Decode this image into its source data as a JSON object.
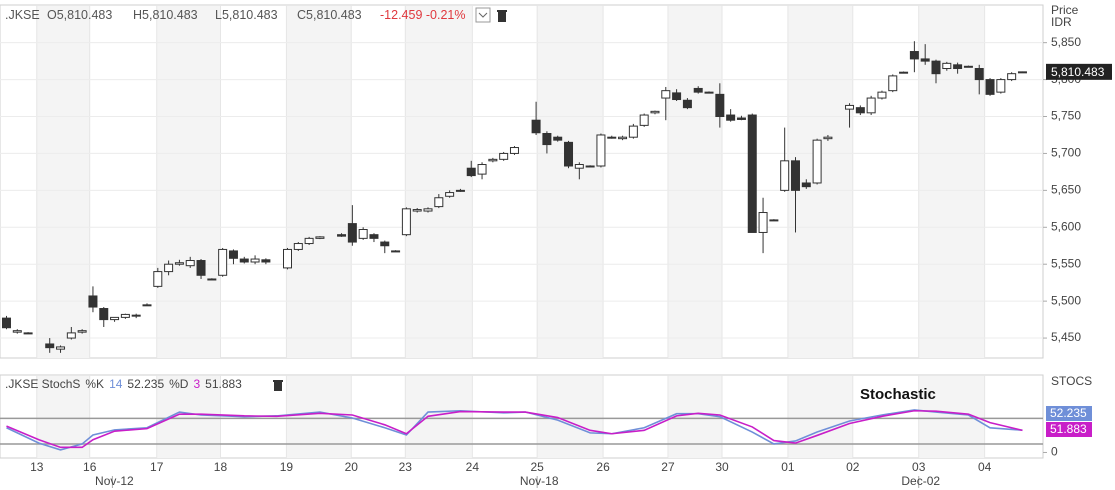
{
  "header": {
    "symbol": ".JKSE",
    "ohlc": [
      "O5,810.483",
      "H5,810.483",
      "L5,810.483",
      "C5,810.483"
    ],
    "change": "-12.459 -0.21%"
  },
  "chart_data": [
    {
      "type": "candlestick",
      "axis_title": [
        "Price",
        "IDR"
      ],
      "x": [
        0,
        1,
        2,
        4,
        5,
        6,
        7,
        8,
        9,
        10,
        11,
        12,
        13,
        14,
        15,
        16,
        17,
        18,
        19,
        20,
        21,
        22,
        23,
        24,
        26,
        27,
        28,
        29,
        31,
        32,
        33,
        34,
        35,
        36,
        37,
        38,
        39,
        40,
        41,
        42,
        43,
        44,
        45,
        46,
        47,
        49,
        50,
        51,
        52,
        53,
        54,
        55,
        56,
        57,
        58,
        59,
        60,
        61,
        62,
        63,
        64,
        65,
        66,
        67,
        68,
        69,
        70,
        71,
        72,
        73,
        74,
        75,
        76,
        78,
        79,
        80,
        81,
        82,
        83,
        84,
        85,
        86,
        87,
        88,
        89,
        90,
        91,
        92,
        93,
        94
      ],
      "open": [
        5477,
        5458,
        5457,
        5442,
        5435,
        5450,
        5458,
        5507,
        5490,
        5475,
        5478,
        5480,
        5495,
        5520,
        5540,
        5550,
        5548,
        5555,
        5530,
        5535,
        5568,
        5557,
        5553,
        5556,
        5545,
        5570,
        5578,
        5585,
        5590,
        5605,
        5585,
        5590,
        5580,
        5568,
        5590,
        5622,
        5622,
        5628,
        5642,
        5650,
        5680,
        5672,
        5690,
        5692,
        5700,
        5745,
        5727,
        5722,
        5715,
        5680,
        5683,
        5683,
        5722,
        5720,
        5722,
        5738,
        5755,
        5775,
        5782,
        5772,
        5788,
        5783,
        5780,
        5752,
        5748,
        5752,
        5593,
        5610,
        5650,
        5690,
        5660,
        5660,
        5720,
        5760,
        5762,
        5755,
        5775,
        5785,
        5810,
        5838,
        5828,
        5825,
        5815,
        5820,
        5818,
        5815,
        5800,
        5783,
        5800,
        5810.483
      ],
      "high": [
        5480,
        5462,
        5458,
        5450,
        5440,
        5465,
        5462,
        5520,
        5492,
        5478,
        5483,
        5483,
        5497,
        5545,
        5555,
        5556,
        5560,
        5557,
        5531,
        5572,
        5570,
        5560,
        5562,
        5558,
        5572,
        5580,
        5587,
        5588,
        5592,
        5630,
        5600,
        5592,
        5582,
        5569,
        5627,
        5626,
        5627,
        5645,
        5650,
        5652,
        5690,
        5688,
        5694,
        5702,
        5710,
        5770,
        5730,
        5724,
        5717,
        5688,
        5684,
        5727,
        5724,
        5724,
        5740,
        5754,
        5758,
        5790,
        5787,
        5775,
        5791,
        5784,
        5795,
        5760,
        5751,
        5754,
        5640,
        5611,
        5735,
        5695,
        5665,
        5720,
        5725,
        5768,
        5765,
        5778,
        5785,
        5807,
        5811,
        5852,
        5848,
        5827,
        5824,
        5823,
        5819,
        5820,
        5802,
        5802,
        5810,
        5811
      ],
      "low": [
        5462,
        5456,
        5456,
        5430,
        5430,
        5448,
        5456,
        5485,
        5465,
        5472,
        5476,
        5477,
        5494,
        5518,
        5535,
        5548,
        5545,
        5530,
        5529,
        5533,
        5550,
        5551,
        5550,
        5550,
        5543,
        5568,
        5576,
        5584,
        5587,
        5575,
        5583,
        5580,
        5565,
        5567,
        5588,
        5620,
        5620,
        5626,
        5640,
        5648,
        5668,
        5665,
        5688,
        5690,
        5698,
        5725,
        5700,
        5716,
        5680,
        5665,
        5681,
        5681,
        5720,
        5718,
        5720,
        5736,
        5753,
        5745,
        5771,
        5760,
        5781,
        5782,
        5735,
        5743,
        5745,
        5593,
        5565,
        5609,
        5648,
        5593,
        5652,
        5658,
        5717,
        5735,
        5752,
        5752,
        5773,
        5783,
        5809,
        5810,
        5820,
        5795,
        5812,
        5808,
        5817,
        5780,
        5778,
        5781,
        5798,
        5809
      ],
      "close": [
        5464,
        5460,
        5457,
        5437,
        5438,
        5457,
        5460,
        5492,
        5475,
        5478,
        5482,
        5481,
        5495,
        5540,
        5550,
        5552,
        5555,
        5535,
        5530,
        5570,
        5558,
        5553,
        5557,
        5553,
        5570,
        5578,
        5585,
        5587,
        5588,
        5580,
        5597,
        5585,
        5575,
        5568,
        5625,
        5624,
        5625,
        5640,
        5647,
        5650,
        5670,
        5685,
        5692,
        5700,
        5708,
        5728,
        5712,
        5718,
        5683,
        5685,
        5683,
        5725,
        5722,
        5722,
        5737,
        5752,
        5757,
        5785,
        5773,
        5762,
        5783,
        5783,
        5750,
        5745,
        5746,
        5593,
        5620,
        5610,
        5690,
        5650,
        5655,
        5718,
        5722,
        5765,
        5755,
        5775,
        5783,
        5805,
        5810,
        5828,
        5825,
        5808,
        5822,
        5815,
        5818,
        5800,
        5780,
        5800,
        5808,
        5810.483
      ],
      "up_color": "#ffffff",
      "down_color": "#333333",
      "xlim": [
        -0.6,
        95.9
      ],
      "xticks": [
        {
          "value": 2.8,
          "label": "13"
        },
        {
          "value": 7.7,
          "label": "16"
        },
        {
          "value": 13.9,
          "label": "17"
        },
        {
          "value": 19.8,
          "label": "18"
        },
        {
          "value": 25.9,
          "label": "19"
        },
        {
          "value": 31.9,
          "label": "20"
        },
        {
          "value": 36.9,
          "label": "23"
        },
        {
          "value": 43.1,
          "label": "24"
        },
        {
          "value": 49.1,
          "label": "25"
        },
        {
          "value": 55.2,
          "label": "26"
        },
        {
          "value": 61.2,
          "label": "27"
        },
        {
          "value": 66.2,
          "label": "30"
        },
        {
          "value": 72.3,
          "label": "01"
        },
        {
          "value": 78.3,
          "label": "02"
        },
        {
          "value": 84.4,
          "label": "03"
        },
        {
          "value": 90.5,
          "label": "04"
        }
      ],
      "month_ticks": [
        {
          "value": 9.8,
          "label": "Nov-12"
        },
        {
          "value": 49.1,
          "label": "Nov-18"
        },
        {
          "value": 84.4,
          "label": "Dec-02"
        }
      ],
      "ylim": [
        5423,
        5901
      ],
      "yticks": [
        {
          "value": 5450,
          "label": "5,450"
        },
        {
          "value": 5500,
          "label": "5,500"
        },
        {
          "value": 5550,
          "label": "5,550"
        },
        {
          "value": 5600,
          "label": "5,600"
        },
        {
          "value": 5650,
          "label": "5,650"
        },
        {
          "value": 5700,
          "label": "5,700"
        },
        {
          "value": 5750,
          "label": "5,750"
        },
        {
          "value": 5800,
          "label": "5,800"
        },
        {
          "value": 5850,
          "label": "5,850"
        }
      ],
      "last_price": {
        "value": 5810.483,
        "label": "5,810.483"
      }
    },
    {
      "type": "line",
      "title": ".JKSE StochS",
      "annotation": "Stochastic",
      "axis_title": "STOCS",
      "x": [
        0,
        3,
        5,
        7,
        8,
        10,
        13,
        16,
        18,
        22,
        25,
        29,
        32,
        35,
        37,
        39,
        42,
        46,
        48,
        51,
        54,
        56,
        59,
        62,
        64,
        66,
        69,
        71,
        73,
        75,
        78,
        81,
        84,
        86,
        89,
        91,
        94
      ],
      "series": [
        {
          "name": "%K",
          "period": 14,
          "color": "#6f8fd8",
          "value_label": "52.235",
          "values": [
            58,
            22,
            6,
            20,
            41,
            53,
            58,
            95,
            88,
            84,
            86,
            95,
            81,
            58,
            41,
            95,
            98,
            93,
            95,
            76,
            46,
            44,
            58,
            91,
            91,
            84,
            48,
            20,
            27,
            48,
            74,
            88,
            100,
            95,
            88,
            58,
            52.235
          ]
        },
        {
          "name": "%D",
          "period": 3,
          "color": "#c81ec8",
          "value_label": "51.883",
          "values": [
            62,
            30,
            12,
            12,
            30,
            50,
            56,
            90,
            90,
            86,
            85,
            92,
            88,
            65,
            44,
            85,
            96,
            95,
            95,
            82,
            52,
            44,
            52,
            86,
            92,
            88,
            60,
            28,
            22,
            40,
            68,
            85,
            98,
            97,
            90,
            70,
            51.883
          ]
        }
      ],
      "xlim": [
        -0.6,
        95.9
      ],
      "ylim": [
        -13,
        182
      ],
      "yticks": [
        0
      ],
      "levels": [
        20,
        80
      ]
    }
  ]
}
